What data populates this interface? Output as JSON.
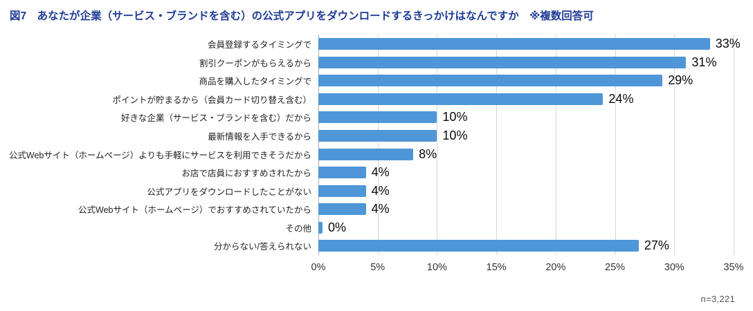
{
  "title": "図7　あなたが企業（サービス・ブランドを含む）の公式アプリをダウンロードするきっかけはなんですか　※複数回答可",
  "footnote": "n=3,221",
  "colors": {
    "bar": "#4e96d8",
    "title": "#1e3c96",
    "grid": "#d6d6d6",
    "grid_zero": "#a8a8a8"
  },
  "chart_data": {
    "type": "bar",
    "orientation": "horizontal",
    "title": "図7　あなたが企業（サービス・ブランドを含む）の公式アプリをダウンロードするきっかけはなんですか　※複数回答可",
    "categories": [
      "会員登録するタイミングで",
      "割引クーポンがもらえるから",
      "商品を購入したタイミングで",
      "ポイントが貯まるから（会員カード切り替え含む）",
      "好きな企業（サービス・ブランドを含む）だから",
      "最新情報を入手できるから",
      "公式Webサイト（ホームページ）よりも手軽にサービスを利用できそうだから",
      "お店で店員におすすめされたから",
      "公式アプリをダウンロードしたことがない",
      "公式Webサイト（ホームページ）でおすすめされていたから",
      "その他",
      "分からない/答えられない"
    ],
    "values": [
      33,
      31,
      29,
      24,
      10,
      10,
      8,
      4,
      4,
      4,
      0,
      27
    ],
    "value_labels": [
      "33%",
      "31%",
      "29%",
      "24%",
      "10%",
      "10%",
      "8%",
      "4%",
      "4%",
      "4%",
      "0%",
      "27%"
    ],
    "x_ticks": [
      "0%",
      "5%",
      "10%",
      "15%",
      "20%",
      "25%",
      "30%",
      "35%"
    ],
    "xlim": [
      0,
      35
    ],
    "xlabel": "",
    "ylabel": "",
    "grid": true,
    "legend": false,
    "sample_size": "n=3,221"
  }
}
